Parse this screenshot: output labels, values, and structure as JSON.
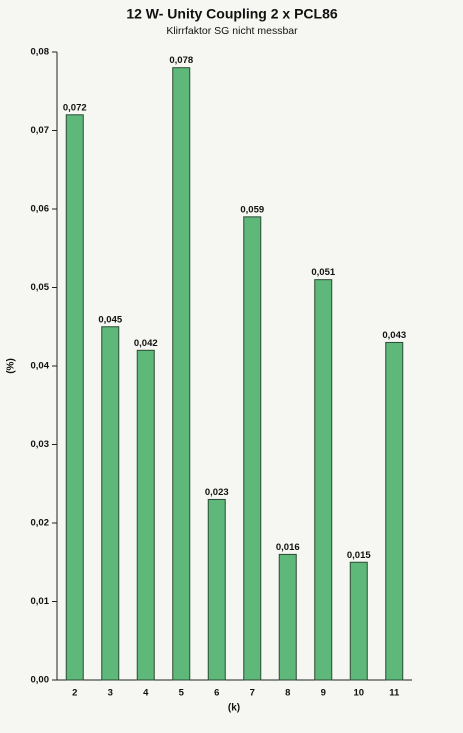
{
  "chart_data": {
    "type": "bar",
    "title": "12 W- Unity Coupling 2 x PCL86",
    "subtitle": "Klirrfaktor SG nicht messbar",
    "x_label": "(k)",
    "y_label": "(%)",
    "categories": [
      "2",
      "3",
      "4",
      "5",
      "6",
      "7",
      "8",
      "9",
      "10",
      "11"
    ],
    "values": [
      0.072,
      0.045,
      0.042,
      0.078,
      0.023,
      0.059,
      0.016,
      0.051,
      0.015,
      0.043
    ],
    "value_labels": [
      "0,072",
      "0,045",
      "0,042",
      "0,078",
      "0,023",
      "0,059",
      "0,016",
      "0,051",
      "0,015",
      "0,043"
    ],
    "color": "#5db87a",
    "ylim": [
      0,
      0.08
    ],
    "yticks": [
      {
        "value": 0,
        "label": "0,00"
      },
      {
        "value": 0.01,
        "label": "0,01"
      },
      {
        "value": 0.02,
        "label": "0,02"
      },
      {
        "value": 0.03,
        "label": "0,03"
      },
      {
        "value": 0.04,
        "label": "0,04"
      },
      {
        "value": 0.05,
        "label": "0,05"
      },
      {
        "value": 0.06,
        "label": "0,06"
      },
      {
        "value": 0.07,
        "label": "0,07"
      },
      {
        "value": 0.08,
        "label": "0,08"
      }
    ],
    "grid": false
  }
}
